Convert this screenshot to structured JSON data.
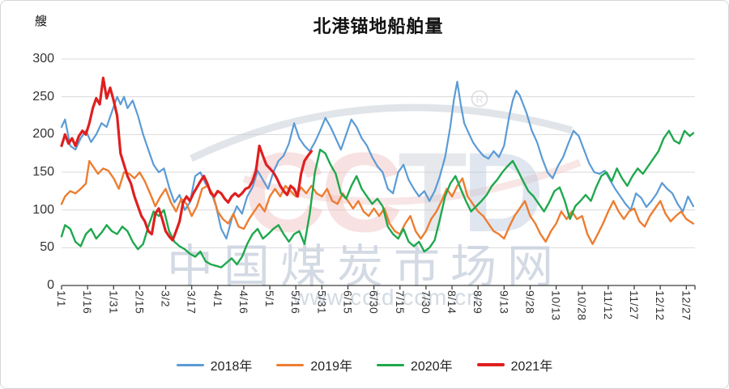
{
  "title": "北港锚地船舶量",
  "unit_label": "艘",
  "watermark": {
    "logo": {
      "cc": "CC",
      "t": "T",
      "d": "D"
    },
    "registered_mark": "R",
    "site_name": "中国煤炭市场网",
    "site_url": "www.cctd.com.cn"
  },
  "style": {
    "grid_color": "#d9d9d9",
    "axis_color": "#3f3f3f",
    "tick_label_color": "#333333"
  },
  "chart_data": {
    "type": "line",
    "title": "北港锚地船舶量",
    "ylabel": "艘",
    "xlabel": "",
    "ylim": [
      0,
      300
    ],
    "yticks": [
      0,
      50,
      100,
      150,
      200,
      250,
      300
    ],
    "grid": "horizontal",
    "legend_position": "bottom",
    "x_total_days": 365,
    "xtick_days": [
      0,
      15,
      30,
      45,
      60,
      75,
      90,
      105,
      120,
      135,
      150,
      165,
      180,
      195,
      210,
      225,
      240,
      255,
      270,
      285,
      300,
      315,
      330,
      345,
      360
    ],
    "xtick_labels": [
      "1/1",
      "1/16",
      "1/31",
      "2/15",
      "3/2",
      "3/17",
      "4/1",
      "4/16",
      "5/1",
      "5/16",
      "5/31",
      "6/15",
      "6/30",
      "7/15",
      "7/30",
      "8/14",
      "8/29",
      "9/13",
      "9/28",
      "10/13",
      "10/28",
      "11/12",
      "11/27",
      "12/12",
      "12/27"
    ],
    "series": [
      {
        "name": "2018年",
        "color": "#5B9BD5",
        "width": 2.2,
        "x": [
          0,
          2,
          5,
          8,
          11,
          14,
          17,
          20,
          23,
          26,
          29,
          32,
          34,
          36,
          38,
          41,
          44,
          47,
          50,
          53,
          56,
          59,
          62,
          65,
          68,
          71,
          74,
          77,
          80,
          83,
          86,
          89,
          92,
          95,
          98,
          101,
          104,
          107,
          110,
          113,
          116,
          119,
          122,
          125,
          128,
          131,
          134,
          137,
          140,
          143,
          146,
          149,
          152,
          155,
          158,
          161,
          164,
          167,
          170,
          173,
          176,
          179,
          182,
          185,
          188,
          191,
          194,
          197,
          200,
          203,
          206,
          209,
          212,
          215,
          218,
          221,
          224,
          226,
          228,
          230,
          232,
          234,
          237,
          240,
          243,
          246,
          249,
          252,
          255,
          258,
          260,
          262,
          264,
          266,
          268,
          271,
          274,
          277,
          280,
          283,
          286,
          289,
          292,
          295,
          298,
          301,
          304,
          307,
          310,
          313,
          316,
          319,
          322,
          325,
          328,
          331,
          334,
          337,
          340,
          343,
          346,
          349,
          352,
          355,
          358,
          361,
          364
        ],
        "values": [
          210,
          220,
          185,
          180,
          195,
          205,
          190,
          200,
          215,
          210,
          230,
          250,
          240,
          250,
          235,
          245,
          225,
          200,
          180,
          160,
          150,
          155,
          130,
          110,
          120,
          100,
          110,
          145,
          150,
          135,
          125,
          105,
          75,
          62,
          88,
          105,
          95,
          118,
          130,
          152,
          140,
          128,
          150,
          165,
          172,
          188,
          215,
          195,
          185,
          178,
          190,
          205,
          222,
          210,
          195,
          180,
          200,
          220,
          210,
          195,
          185,
          170,
          158,
          150,
          128,
          122,
          150,
          160,
          140,
          128,
          118,
          125,
          112,
          125,
          145,
          170,
          210,
          245,
          270,
          240,
          215,
          205,
          190,
          180,
          172,
          168,
          178,
          170,
          185,
          225,
          245,
          258,
          252,
          240,
          228,
          205,
          190,
          168,
          150,
          142,
          158,
          170,
          188,
          205,
          198,
          180,
          162,
          150,
          148,
          152,
          140,
          128,
          118,
          108,
          100,
          122,
          116,
          104,
          112,
          122,
          136,
          128,
          122,
          108,
          98,
          118,
          105
        ]
      },
      {
        "name": "2019年",
        "color": "#ED7D31",
        "width": 2.4,
        "x": [
          0,
          2,
          5,
          8,
          11,
          14,
          16,
          18,
          21,
          24,
          27,
          30,
          33,
          36,
          39,
          42,
          45,
          48,
          51,
          54,
          57,
          60,
          63,
          66,
          69,
          72,
          75,
          78,
          81,
          84,
          87,
          90,
          93,
          96,
          99,
          102,
          105,
          108,
          111,
          114,
          117,
          120,
          123,
          126,
          129,
          132,
          135,
          138,
          141,
          144,
          147,
          150,
          153,
          156,
          159,
          162,
          165,
          168,
          171,
          174,
          177,
          180,
          183,
          186,
          189,
          192,
          195,
          198,
          201,
          204,
          207,
          210,
          213,
          216,
          219,
          222,
          225,
          228,
          231,
          234,
          237,
          240,
          243,
          246,
          249,
          252,
          255,
          258,
          261,
          264,
          267,
          270,
          273,
          276,
          279,
          282,
          285,
          288,
          291,
          294,
          297,
          300,
          303,
          306,
          309,
          312,
          315,
          318,
          321,
          324,
          327,
          330,
          333,
          336,
          339,
          342,
          345,
          348,
          351,
          354,
          357,
          360,
          364
        ],
        "values": [
          108,
          118,
          125,
          122,
          128,
          135,
          165,
          158,
          148,
          155,
          152,
          142,
          128,
          150,
          148,
          142,
          150,
          138,
          122,
          105,
          118,
          128,
          110,
          98,
          115,
          108,
          92,
          105,
          128,
          132,
          122,
          98,
          88,
          82,
          95,
          78,
          75,
          88,
          98,
          108,
          98,
          118,
          128,
          118,
          132,
          125,
          118,
          130,
          122,
          132,
          122,
          118,
          128,
          112,
          108,
          122,
          112,
          102,
          112,
          98,
          92,
          102,
          92,
          102,
          82,
          72,
          68,
          82,
          92,
          72,
          62,
          72,
          88,
          98,
          112,
          128,
          118,
          132,
          142,
          118,
          108,
          98,
          92,
          82,
          72,
          68,
          62,
          78,
          92,
          102,
          112,
          92,
          82,
          68,
          58,
          72,
          82,
          98,
          88,
          98,
          88,
          92,
          68,
          55,
          68,
          82,
          98,
          112,
          98,
          88,
          98,
          102,
          85,
          78,
          92,
          102,
          112,
          95,
          85,
          92,
          98,
          88,
          82
        ]
      },
      {
        "name": "2020年",
        "color": "#1FA84D",
        "width": 2.4,
        "x": [
          0,
          2,
          5,
          8,
          11,
          14,
          17,
          20,
          23,
          26,
          29,
          32,
          35,
          38,
          41,
          44,
          47,
          50,
          53,
          56,
          59,
          62,
          65,
          68,
          71,
          74,
          77,
          80,
          83,
          86,
          89,
          92,
          95,
          98,
          101,
          104,
          107,
          110,
          113,
          116,
          119,
          122,
          125,
          128,
          131,
          134,
          137,
          140,
          143,
          146,
          149,
          152,
          155,
          158,
          161,
          164,
          167,
          170,
          173,
          176,
          179,
          182,
          185,
          188,
          191,
          194,
          197,
          200,
          203,
          206,
          209,
          212,
          215,
          218,
          221,
          224,
          227,
          230,
          233,
          236,
          239,
          242,
          245,
          248,
          251,
          254,
          257,
          260,
          263,
          266,
          269,
          272,
          275,
          278,
          281,
          284,
          287,
          290,
          293,
          296,
          299,
          302,
          305,
          308,
          311,
          314,
          317,
          320,
          323,
          326,
          329,
          332,
          335,
          338,
          341,
          344,
          347,
          350,
          353,
          356,
          359,
          362,
          364
        ],
        "values": [
          65,
          80,
          75,
          58,
          52,
          68,
          75,
          62,
          70,
          80,
          72,
          68,
          78,
          72,
          58,
          48,
          55,
          78,
          98,
          92,
          100,
          72,
          58,
          52,
          48,
          42,
          38,
          45,
          32,
          28,
          26,
          24,
          30,
          36,
          28,
          38,
          55,
          68,
          75,
          62,
          68,
          75,
          80,
          68,
          58,
          68,
          72,
          55,
          95,
          150,
          180,
          175,
          160,
          148,
          122,
          115,
          132,
          145,
          128,
          118,
          108,
          115,
          105,
          78,
          68,
          62,
          75,
          58,
          52,
          58,
          45,
          50,
          60,
          88,
          118,
          135,
          145,
          128,
          112,
          98,
          105,
          112,
          120,
          132,
          140,
          150,
          158,
          165,
          152,
          138,
          125,
          118,
          108,
          98,
          110,
          125,
          130,
          112,
          88,
          105,
          112,
          120,
          112,
          130,
          145,
          150,
          138,
          155,
          142,
          132,
          145,
          155,
          148,
          158,
          168,
          178,
          195,
          205,
          192,
          188,
          205,
          198,
          202
        ]
      },
      {
        "name": "2021年",
        "color": "#DF1F1F",
        "width": 3.2,
        "x": [
          0,
          2,
          4,
          6,
          8,
          10,
          12,
          14,
          16,
          18,
          20,
          22,
          24,
          26,
          28,
          30,
          32,
          34,
          36,
          38,
          40,
          42,
          44,
          46,
          48,
          50,
          52,
          54,
          56,
          58,
          60,
          62,
          64,
          66,
          68,
          70,
          72,
          74,
          76,
          78,
          80,
          82,
          84,
          86,
          88,
          90,
          92,
          94,
          96,
          98,
          100,
          102,
          104,
          106,
          108,
          110,
          112,
          114,
          116,
          118,
          120,
          122,
          124,
          126,
          128,
          130,
          132,
          134,
          136,
          138,
          140,
          142,
          144
        ],
        "values": [
          185,
          200,
          188,
          195,
          185,
          198,
          205,
          200,
          215,
          235,
          248,
          240,
          275,
          248,
          262,
          245,
          225,
          175,
          160,
          145,
          135,
          118,
          105,
          92,
          85,
          72,
          68,
          95,
          102,
          88,
          72,
          65,
          60,
          72,
          85,
          110,
          118,
          112,
          122,
          130,
          138,
          145,
          135,
          122,
          118,
          125,
          122,
          115,
          110,
          118,
          122,
          118,
          122,
          128,
          130,
          138,
          152,
          185,
          172,
          160,
          155,
          150,
          142,
          132,
          125,
          120,
          132,
          128,
          118,
          148,
          165,
          172,
          178
        ]
      }
    ]
  }
}
